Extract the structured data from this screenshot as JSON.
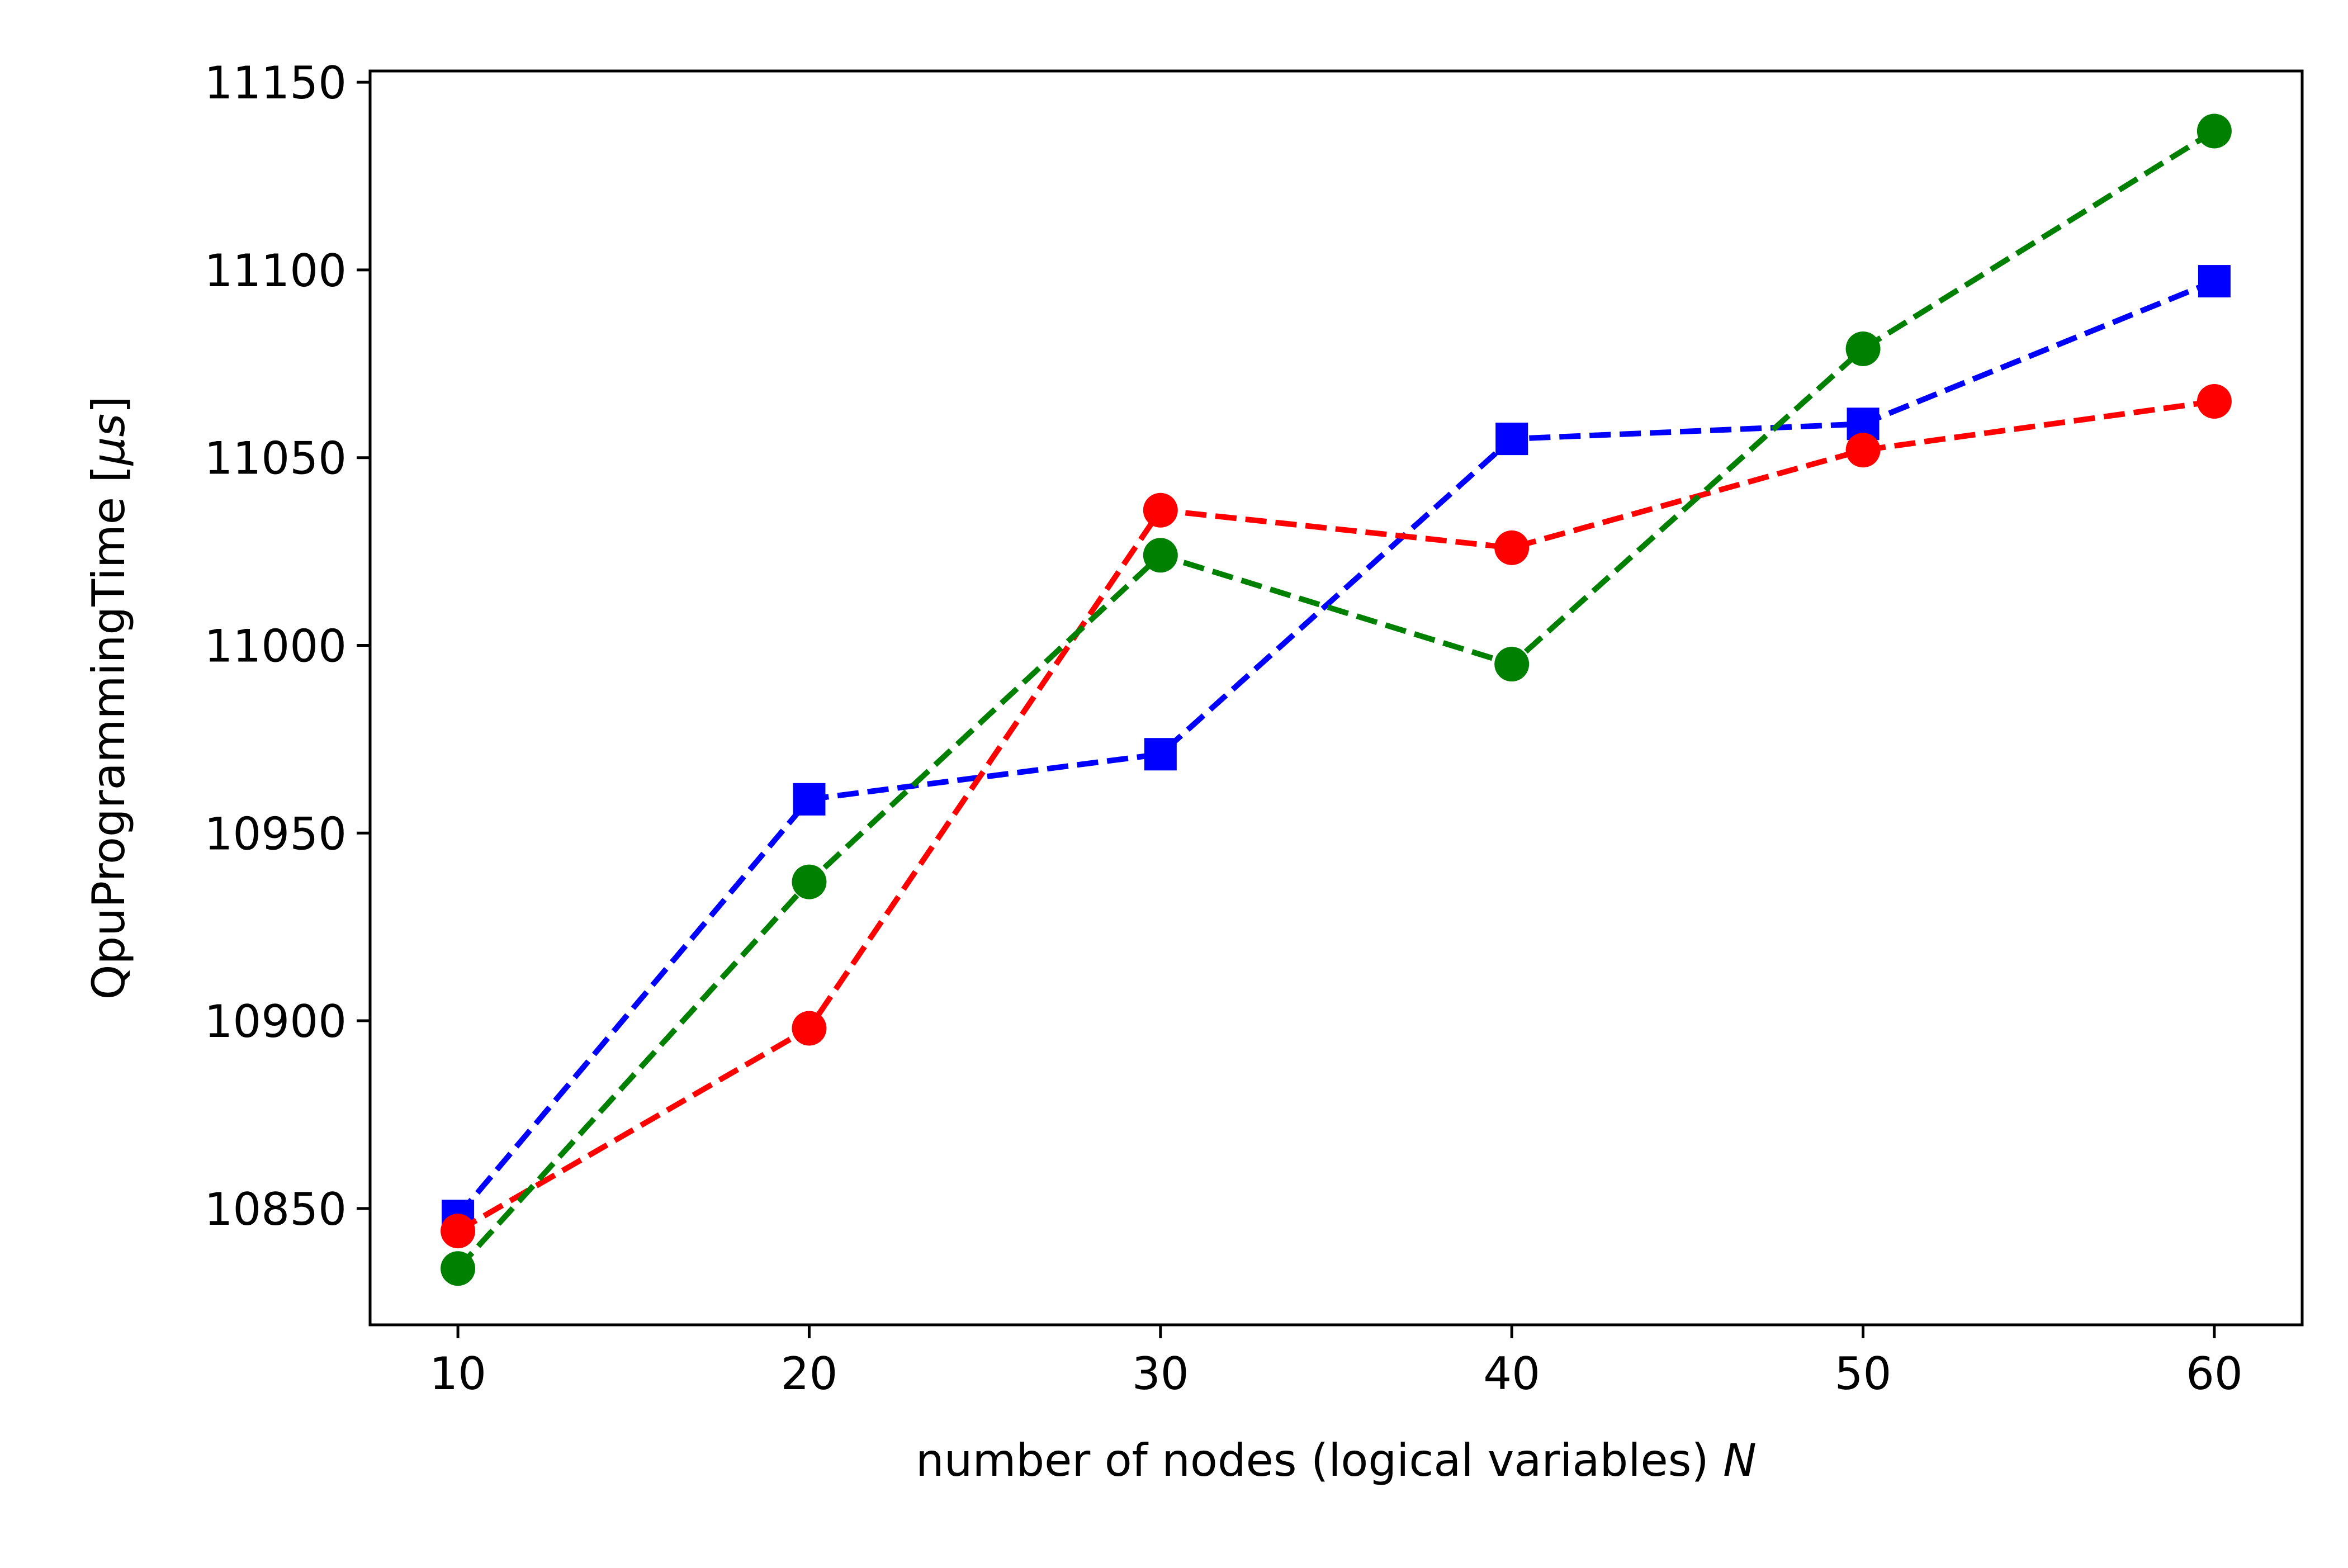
{
  "chart_data": {
    "type": "line",
    "title": "",
    "xlabel": "number of nodes (logical variables)",
    "xlabel_symbol": "N",
    "ylabel": "QpuProgrammingTime",
    "ylabel_unit_open": "[",
    "ylabel_unit_symbol": "μs",
    "ylabel_unit_close": "]",
    "xlim": [
      7.5,
      62.5
    ],
    "ylim": [
      10819,
      11153
    ],
    "x_ticks": [
      10,
      20,
      30,
      40,
      50,
      60
    ],
    "x_tick_labels": [
      "10",
      "20",
      "30",
      "40",
      "50",
      "60"
    ],
    "y_ticks": [
      10850,
      10900,
      10950,
      11000,
      11050,
      11100,
      11150
    ],
    "y_tick_labels": [
      "10850",
      "10900",
      "10950",
      "11000",
      "11050",
      "11100",
      "11150"
    ],
    "grid": false,
    "x": [
      10,
      20,
      30,
      40,
      50,
      60
    ],
    "series": [
      {
        "color": "#0000ff",
        "marker": "square",
        "linestyle": "dashed",
        "values": [
          10848,
          10959,
          10971,
          11055,
          11059,
          11097
        ]
      },
      {
        "color": "#ff0000",
        "marker": "circle",
        "linestyle": "dashed",
        "values": [
          10844,
          10898,
          11036,
          11026,
          11052,
          11065
        ]
      },
      {
        "color": "#008000",
        "marker": "circle",
        "linestyle": "dashed",
        "values": [
          10834,
          10937,
          11024,
          10995,
          11079,
          11137
        ]
      }
    ]
  }
}
